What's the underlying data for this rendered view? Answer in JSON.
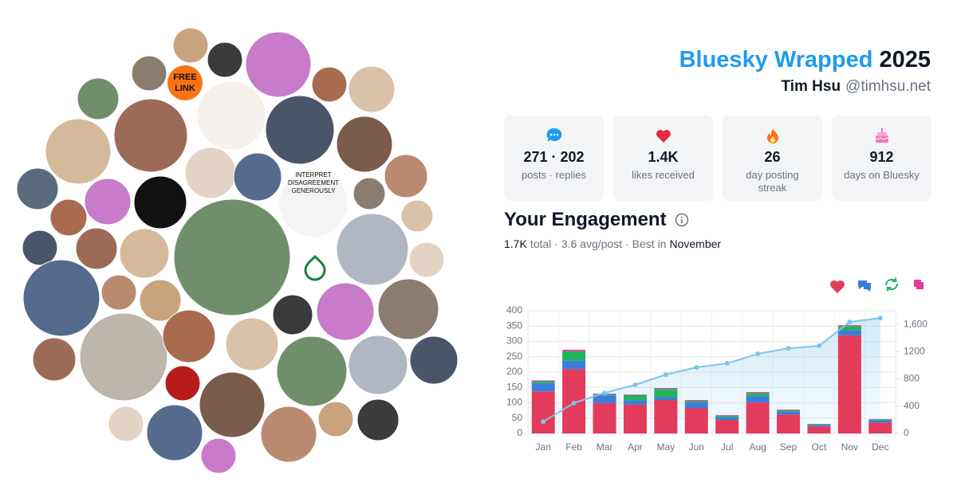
{
  "avatars": {
    "badge": [
      "FREE",
      "LINK"
    ],
    "cartoon": [
      "INTERPRET",
      "DISAGREEMENT",
      "GENEROUSLY"
    ]
  },
  "header": {
    "title": "Bluesky Wrapped",
    "year": "2025",
    "name": "Tim Hsu",
    "handle": "@timhsu.net"
  },
  "stats": [
    {
      "value": "271 · 202",
      "label": "posts · replies"
    },
    {
      "value": "1.4K",
      "label": "likes received"
    },
    {
      "value": "26",
      "label": "day posting streak"
    },
    {
      "value": "912",
      "label": "days on Bluesky"
    }
  ],
  "engagement": {
    "title": "Your Engagement",
    "summary": [
      "1.7K",
      "total ·",
      "3.6 avg/post",
      "· Best in",
      "November"
    ]
  },
  "chart_data": {
    "type": "bar",
    "stacked": true,
    "categories": [
      "Jan",
      "Feb",
      "Mar",
      "Apr",
      "May",
      "Jun",
      "Jul",
      "Aug",
      "Sep",
      "Oct",
      "Nov",
      "Dec"
    ],
    "series": [
      {
        "color": "#e23b5c",
        "values": [
          137,
          210,
          99,
          94,
          109,
          83,
          44,
          101,
          62,
          23,
          320,
          36
        ]
      },
      {
        "color": "#3b7ddd",
        "values": [
          27,
          28,
          25,
          14,
          9,
          18,
          10,
          20,
          10,
          5,
          16,
          7
        ]
      },
      {
        "color": "#22b35e",
        "values": [
          6,
          30,
          4,
          17,
          27,
          5,
          4,
          11,
          4,
          2,
          14,
          3
        ]
      },
      {
        "color": "#e6399b",
        "values": [
          3,
          5,
          2,
          2,
          3,
          3,
          2,
          3,
          2,
          1,
          3,
          1
        ]
      },
      {
        "type": "line",
        "axis": "y2",
        "color": "#7cc4ea",
        "values": [
          173,
          446,
          595,
          713,
          864,
          970,
          1028,
          1168,
          1250,
          1285,
          1635,
          1694
        ]
      }
    ],
    "ylim": [
      0,
      400
    ],
    "yticks": [
      0,
      50,
      100,
      150,
      200,
      250,
      300,
      350,
      400
    ],
    "y2lim": [
      0,
      1800
    ],
    "y2ticks": [
      0,
      400,
      800,
      1200,
      {
        "value": 1600,
        "label": "1,600"
      }
    ],
    "grid": true
  }
}
